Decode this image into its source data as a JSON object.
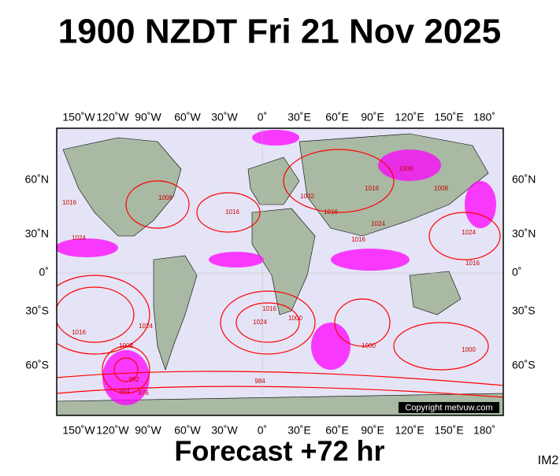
{
  "header": {
    "title": "1900 NZDT Fri 21 Nov 2025"
  },
  "map": {
    "lon_labels": [
      "150˚W",
      "120˚W",
      "90˚W",
      "60˚W",
      "30˚W",
      "0˚",
      "30˚E",
      "60˚E",
      "90˚E",
      "120˚E",
      "150˚E",
      "180˚"
    ],
    "lat_labels": [
      "60˚N",
      "30˚N",
      "0˚",
      "30˚S",
      "60˚S"
    ],
    "isobar_labels": [
      "1024",
      "1016",
      "1008",
      "1016",
      "1024",
      "1032",
      "1016",
      "1024",
      "1016",
      "1008",
      "1024",
      "1016",
      "1000",
      "992",
      "984",
      "976",
      "1024",
      "1016",
      "1008",
      "1000",
      "984",
      "1000",
      "1016",
      "1008",
      "1016"
    ],
    "copyright": "Copyright metvuw.com"
  },
  "footer": {
    "forecast": "Forecast +72 hr",
    "code": "IM2"
  }
}
